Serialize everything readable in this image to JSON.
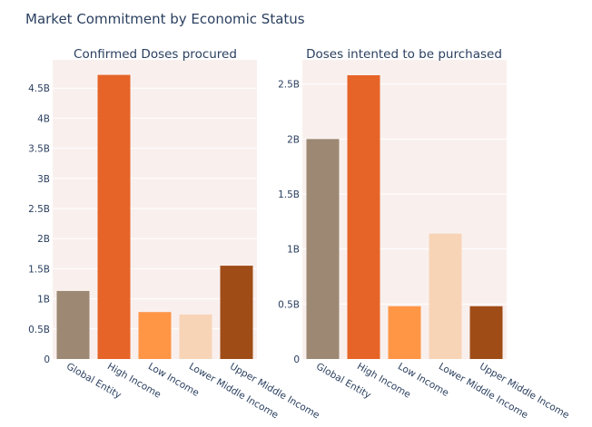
{
  "title": "Market Commitment by Economic Status",
  "colors": {
    "plot_bg": "#f9f0ee",
    "grid": "#ffffff",
    "text": "#2a3f5f",
    "bars": [
      "#9c8873",
      "#e66427",
      "#fe9646",
      "#f8d4b7",
      "#a04c17"
    ]
  },
  "chart_data": [
    {
      "type": "bar",
      "title": "Confirmed Doses procured",
      "categories": [
        "Global Entity",
        "High Income",
        "Low Income",
        "Lower Middle Income",
        "Upper Middle Income"
      ],
      "values": [
        1130000000.0,
        4720000000.0,
        780000000.0,
        740000000.0,
        1550000000.0
      ],
      "ylim": [
        0,
        4970000000.0
      ],
      "yticks": [
        0,
        500000000.0,
        1000000000.0,
        1500000000.0,
        2000000000.0,
        2500000000.0,
        3000000000.0,
        3500000000.0,
        4000000000.0,
        4500000000.0
      ],
      "ytick_labels": [
        "0",
        "0.5B",
        "1B",
        "1.5B",
        "2B",
        "2.5B",
        "3B",
        "3.5B",
        "4B",
        "4.5B"
      ],
      "xlabel": "",
      "ylabel": ""
    },
    {
      "type": "bar",
      "title": "Doses intented to be purchased",
      "categories": [
        "Global Entity",
        "High Income",
        "Low Income",
        "Lower Middle Income",
        "Upper Middle Income"
      ],
      "values": [
        2000000000.0,
        2580000000.0,
        480000000.0,
        1140000000.0,
        480000000.0
      ],
      "ylim": [
        0,
        2720000000.0
      ],
      "yticks": [
        0,
        500000000.0,
        1000000000.0,
        1500000000.0,
        2000000000.0,
        2500000000.0
      ],
      "ytick_labels": [
        "0",
        "0.5B",
        "1B",
        "1.5B",
        "2B",
        "2.5B"
      ],
      "xlabel": "",
      "ylabel": ""
    }
  ]
}
